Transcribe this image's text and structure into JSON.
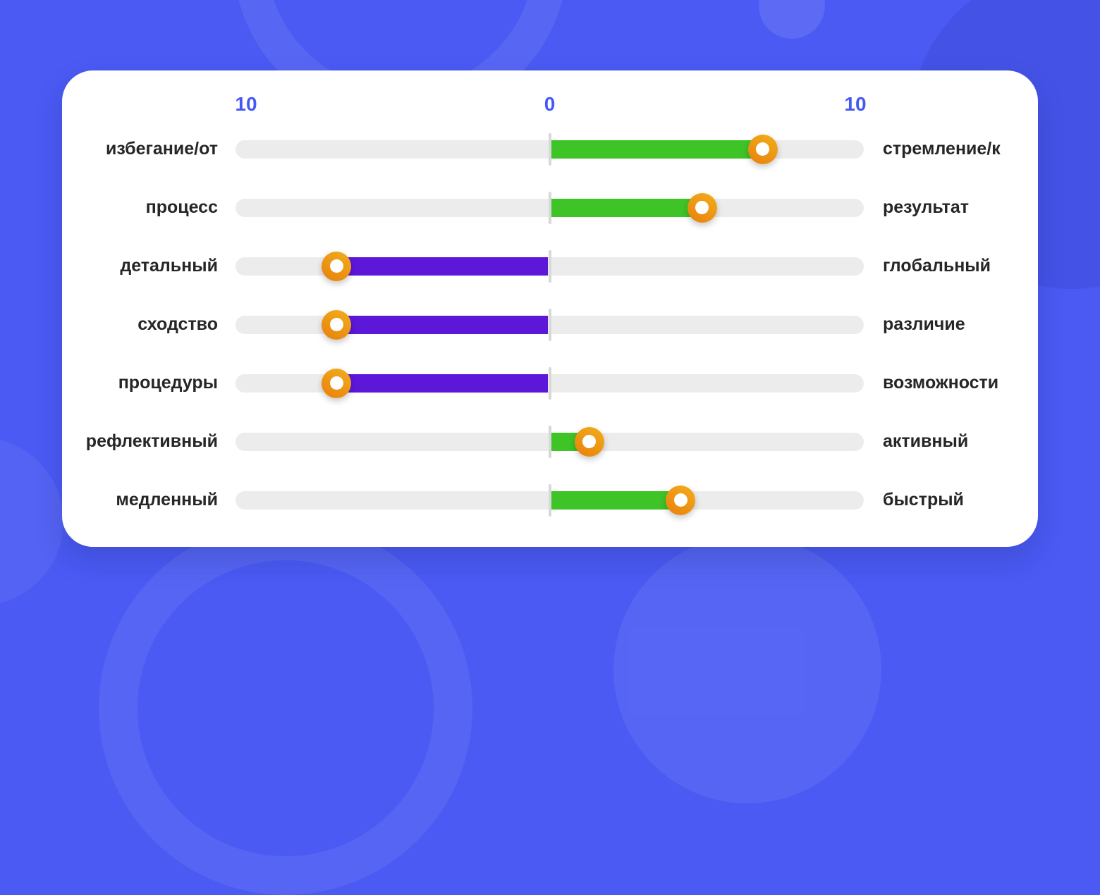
{
  "scale": {
    "left_max": "10",
    "center": "0",
    "right_max": "10"
  },
  "sliders": [
    {
      "left_label": "избегание/от",
      "right_label": "стремление/к",
      "side": "right",
      "value": 7,
      "bar_color": "green"
    },
    {
      "left_label": "процесс",
      "right_label": "результат",
      "side": "right",
      "value": 5,
      "bar_color": "green"
    },
    {
      "left_label": "детальный",
      "right_label": "глобальный",
      "side": "left",
      "value": 7,
      "bar_color": "purple"
    },
    {
      "left_label": "сходство",
      "right_label": "различие",
      "side": "left",
      "value": 7,
      "bar_color": "purple"
    },
    {
      "left_label": "процедуры",
      "right_label": "возможности",
      "side": "left",
      "value": 7,
      "bar_color": "purple"
    },
    {
      "left_label": "рефлективный",
      "right_label": "активный",
      "side": "right",
      "value": 1.3,
      "bar_color": "green"
    },
    {
      "left_label": "медленный",
      "right_label": "быстрый",
      "side": "right",
      "value": 4.3,
      "bar_color": "green"
    }
  ],
  "colors": {
    "background": "#4a5af3",
    "card": "#ffffff",
    "track": "#ececec",
    "center_tick": "#d8d8d8",
    "green_bar": "#3ec427",
    "purple_bar": "#5c17d9",
    "handle_gradient_start": "#f3ae1c",
    "handle_gradient_end": "#e8800d",
    "handle_center": "#ffffff",
    "scale_text": "#4558f2",
    "label_text": "#262626"
  },
  "chart_data": {
    "type": "bar",
    "subtype": "diverging-horizontal-sliders",
    "title": "",
    "axis": {
      "left_end_label": "10",
      "center_label": "0",
      "right_end_label": "10",
      "range_each_side": [
        0,
        10
      ]
    },
    "legend_position": "none",
    "grid": false,
    "rows": [
      {
        "left_pole": "избегание/от",
        "right_pole": "стремление/к",
        "direction": "right",
        "value": 7,
        "color": "#3ec427"
      },
      {
        "left_pole": "процесс",
        "right_pole": "результат",
        "direction": "right",
        "value": 5,
        "color": "#3ec427"
      },
      {
        "left_pole": "детальный",
        "right_pole": "глобальный",
        "direction": "left",
        "value": 7,
        "color": "#5c17d9"
      },
      {
        "left_pole": "сходство",
        "right_pole": "различие",
        "direction": "left",
        "value": 7,
        "color": "#5c17d9"
      },
      {
        "left_pole": "процедуры",
        "right_pole": "возможности",
        "direction": "left",
        "value": 7,
        "color": "#5c17d9"
      },
      {
        "left_pole": "рефлективный",
        "right_pole": "активный",
        "direction": "right",
        "value": 1.3,
        "color": "#3ec427"
      },
      {
        "left_pole": "медленный",
        "right_pole": "быстрый",
        "direction": "right",
        "value": 4.3,
        "color": "#3ec427"
      }
    ]
  }
}
